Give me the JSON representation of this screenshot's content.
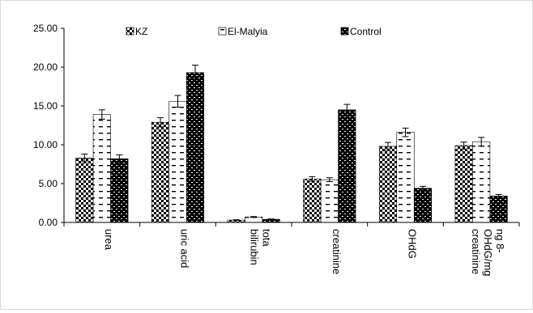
{
  "chart_data": {
    "type": "bar",
    "title": "",
    "xlabel": "",
    "ylabel": "",
    "ylim": [
      0,
      25
    ],
    "yticks": [
      0,
      5,
      10,
      15,
      20,
      25
    ],
    "ytick_labels": [
      "0.00",
      "5.00",
      "10.00",
      "15.00",
      "20.00",
      "25.00"
    ],
    "grid": false,
    "legend_position": "top",
    "categories": [
      [
        "urea"
      ],
      [
        "uric acid"
      ],
      [
        "tota",
        "bilirubin"
      ],
      [
        "creatinine"
      ],
      [
        "OHdG"
      ],
      [
        "ng 8-",
        "OHdG/mg",
        "creatinine"
      ]
    ],
    "series": [
      {
        "name": "KZ",
        "pattern": "checker",
        "values": [
          8.3,
          12.9,
          0.3,
          5.6,
          9.8,
          9.9
        ],
        "errors": [
          0.5,
          0.6,
          0.05,
          0.3,
          0.5,
          0.45
        ]
      },
      {
        "name": "El-Malyia",
        "pattern": "dashes",
        "values": [
          13.9,
          15.6,
          0.7,
          5.5,
          11.6,
          10.4
        ],
        "errors": [
          0.6,
          0.75,
          0.05,
          0.25,
          0.55,
          0.55
        ]
      },
      {
        "name": "Control",
        "pattern": "dense",
        "values": [
          8.2,
          19.3,
          0.4,
          14.5,
          4.4,
          3.4
        ],
        "errors": [
          0.5,
          0.95,
          0.05,
          0.7,
          0.25,
          0.2
        ]
      }
    ]
  }
}
